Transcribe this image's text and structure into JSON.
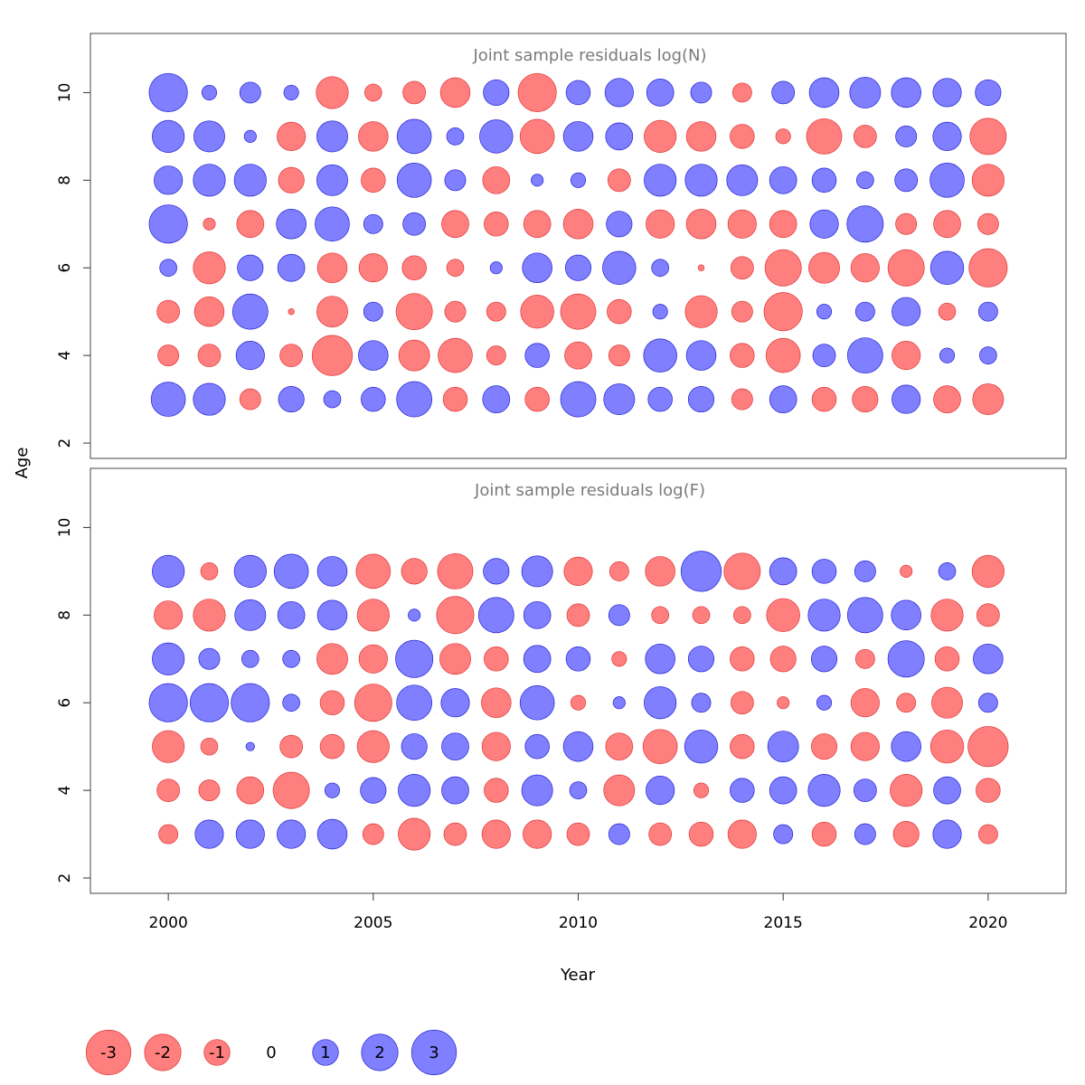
{
  "chart_data": {
    "type": "scatter",
    "variant": "bubble",
    "xlabel": "Year",
    "ylabel": "Age",
    "xlim": [
      1998.1,
      2021.9
    ],
    "ylim": [
      1.65,
      11.35
    ],
    "x_ticks": [
      2000,
      2005,
      2010,
      2015,
      2020
    ],
    "y_ticks": [
      2,
      4,
      6,
      8,
      10
    ],
    "years": [
      2000,
      2001,
      2002,
      2003,
      2004,
      2005,
      2006,
      2007,
      2008,
      2009,
      2010,
      2011,
      2012,
      2013,
      2014,
      2015,
      2016,
      2017,
      2018,
      2019,
      2020
    ],
    "colors": {
      "positive": "#0000ff",
      "negative": "#ff0000"
    },
    "panels": [
      {
        "title": "Joint sample residuals log(N)",
        "ages": [
          10,
          9,
          8,
          7,
          6,
          5,
          4,
          3
        ],
        "residuals": [
          [
            2.0,
            0.3,
            0.6,
            0.3,
            -1.4,
            -0.4,
            -0.7,
            -1.2,
            0.9,
            -2.0,
            0.8,
            1.1,
            1.0,
            0.6,
            -0.5,
            0.7,
            1.2,
            1.3,
            1.2,
            1.1,
            0.9
          ],
          [
            1.4,
            1.3,
            0.2,
            -1.1,
            1.3,
            -1.2,
            1.6,
            0.4,
            1.5,
            -1.6,
            1.2,
            1.0,
            -1.4,
            -1.2,
            -0.8,
            -0.3,
            -1.7,
            -0.7,
            0.6,
            1.1,
            -1.8
          ],
          [
            1.1,
            1.4,
            1.4,
            -0.9,
            1.3,
            -0.8,
            1.6,
            0.6,
            -1.0,
            0.2,
            0.3,
            -0.7,
            1.4,
            1.4,
            1.3,
            1.0,
            0.8,
            0.4,
            0.7,
            1.6,
            -1.4
          ],
          [
            2.0,
            -0.2,
            -1.0,
            1.2,
            1.6,
            0.5,
            0.7,
            -1.0,
            -0.8,
            -1.0,
            -1.2,
            0.9,
            -1.1,
            -1.2,
            -1.1,
            -1.0,
            1.1,
            1.8,
            -0.6,
            -1.0,
            -0.6
          ],
          [
            0.4,
            -1.4,
            0.9,
            1.0,
            -1.2,
            -1.1,
            -0.8,
            -0.4,
            0.2,
            1.2,
            0.9,
            1.5,
            0.4,
            -0.05,
            -0.7,
            -1.8,
            -1.3,
            -1.1,
            -1.8,
            1.5,
            -2.0
          ],
          [
            -0.7,
            -1.2,
            1.7,
            -0.05,
            -1.3,
            0.5,
            -1.8,
            -0.6,
            -0.5,
            -1.5,
            -1.7,
            -0.8,
            0.3,
            -1.4,
            -0.6,
            -2.0,
            0.3,
            0.5,
            1.1,
            -0.4,
            0.5
          ],
          [
            -0.6,
            -0.7,
            1.1,
            -0.7,
            -2.2,
            1.2,
            -1.3,
            -1.6,
            -0.5,
            0.8,
            -1.0,
            -0.6,
            1.5,
            1.2,
            -0.8,
            -1.6,
            0.7,
            1.7,
            -1.1,
            0.3,
            0.4
          ],
          [
            1.6,
            1.4,
            -0.6,
            0.9,
            0.4,
            0.8,
            1.7,
            -0.8,
            1.0,
            -0.8,
            1.7,
            1.3,
            0.8,
            0.9,
            -0.6,
            1.0,
            -0.8,
            -0.9,
            1.1,
            -1.0,
            -1.3
          ]
        ]
      },
      {
        "title": "Joint sample residuals log(F)",
        "ages": [
          9,
          8,
          7,
          6,
          5,
          4,
          3
        ],
        "residuals": [
          [
            1.4,
            -0.4,
            1.4,
            1.6,
            1.2,
            -1.6,
            -0.9,
            -1.7,
            0.9,
            1.3,
            -1.1,
            -0.5,
            -1.2,
            2.2,
            -1.8,
            1.0,
            0.8,
            0.6,
            -0.2,
            0.4,
            -1.4
          ],
          [
            -1.1,
            -1.4,
            1.3,
            1.0,
            1.2,
            -1.4,
            0.2,
            -1.9,
            1.7,
            1.0,
            -0.7,
            0.6,
            -0.4,
            -0.4,
            -0.4,
            -1.5,
            1.4,
            1.7,
            1.2,
            -1.4,
            -0.7
          ],
          [
            1.4,
            0.6,
            0.4,
            0.4,
            -1.3,
            -1.1,
            1.9,
            -1.3,
            -0.8,
            1.0,
            0.8,
            -0.3,
            1.2,
            0.9,
            -0.8,
            -0.9,
            0.9,
            -0.5,
            1.8,
            -0.8,
            1.2
          ],
          [
            2.0,
            2.0,
            2.0,
            0.4,
            -0.8,
            -1.9,
            1.7,
            1.1,
            -1.2,
            1.6,
            -0.3,
            0.2,
            1.4,
            0.5,
            -0.7,
            -0.2,
            0.3,
            -1.1,
            -0.5,
            -1.3,
            0.5
          ],
          [
            -1.4,
            -0.4,
            0.1,
            -0.7,
            -0.8,
            -1.4,
            0.9,
            1.0,
            -1.1,
            0.8,
            1.2,
            -1.0,
            -1.6,
            1.5,
            -0.8,
            1.3,
            -0.9,
            -1.1,
            1.2,
            -1.5,
            -2.2
          ],
          [
            -0.7,
            -0.6,
            -1.0,
            -1.8,
            0.3,
            0.9,
            1.4,
            1.0,
            -0.8,
            1.3,
            0.4,
            -1.3,
            1.1,
            -0.3,
            0.8,
            1.0,
            1.4,
            0.7,
            -1.4,
            1.0,
            -0.8
          ],
          [
            -0.5,
            1.1,
            1.1,
            1.1,
            1.2,
            -0.6,
            -1.4,
            -0.7,
            -1.1,
            -1.1,
            -0.7,
            0.6,
            -0.7,
            -0.8,
            -1.1,
            0.5,
            -0.8,
            0.6,
            -0.9,
            1.1,
            -0.5
          ]
        ]
      }
    ],
    "legend": {
      "position": "bottom-left",
      "items": [
        {
          "value": -3,
          "label": "-3"
        },
        {
          "value": -2,
          "label": "-2"
        },
        {
          "value": -1,
          "label": "-1"
        },
        {
          "value": 0,
          "label": "0"
        },
        {
          "value": 1,
          "label": "1"
        },
        {
          "value": 2,
          "label": "2"
        },
        {
          "value": 3,
          "label": "3"
        }
      ]
    }
  }
}
